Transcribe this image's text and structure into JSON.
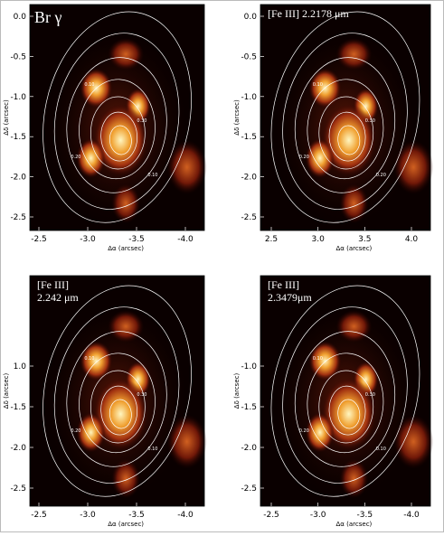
{
  "panels": [
    {
      "label": [
        "Br γ"
      ],
      "yticks": [
        "0.0",
        "-0.5",
        "-1.0",
        "-1.5",
        "-2.0",
        "-2.5"
      ],
      "xticks": [
        "-2.5",
        "-3.0",
        "-3.5",
        "-4.0"
      ],
      "xlabel": "Δα (arcsec)",
      "ylabel": "Δδ (arcsec)",
      "contour_labels": [
        "0.10",
        "0.20",
        "0.30",
        "0.10"
      ]
    },
    {
      "label": [
        "[Fe III] 2.2178 μm"
      ],
      "yticks": [
        "0.0",
        "-0.5",
        "-1.0",
        "-1.5",
        "-2.0",
        "-2.5"
      ],
      "xticks": [
        "2.5",
        "3.0",
        "3.5",
        "4.0"
      ],
      "xlabel": "Δα (arcsec)",
      "ylabel": "Δδ (arcsec)",
      "contour_labels": [
        "0.10",
        "0.20",
        "0.30",
        "0.20"
      ]
    },
    {
      "label": [
        "[Fe III]",
        "2.242 μm"
      ],
      "yticks": [
        "1.0",
        "-1.5",
        "-2.0",
        "-2.5"
      ],
      "xticks": [
        "-2.5",
        "-3.0",
        "-3.5",
        "-4.0"
      ],
      "xlabel": "Δα (arcsec)",
      "ylabel": "Δδ (arcsec)",
      "contour_labels": [
        "0.10",
        "0.20",
        "0.30",
        "0.10"
      ]
    },
    {
      "label": [
        "[Fe III]",
        "2.3479μm"
      ],
      "yticks": [
        "-1.0",
        "-1.5",
        "-2.0",
        "-2.5"
      ],
      "xticks": [
        "-2.5",
        "-3.0",
        "-3.5",
        "-4.0"
      ],
      "xlabel": "Δα (arcsec)",
      "ylabel": "Δδ (arcsec)",
      "contour_labels": [
        "0.10",
        "0.20",
        "0.30",
        "0.10"
      ]
    }
  ]
}
